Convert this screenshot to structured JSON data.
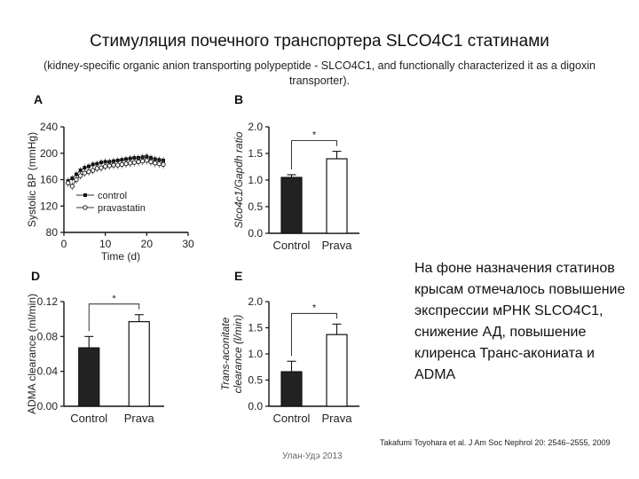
{
  "slide": {
    "title": "Стимуляция почечного транспортера SLCO4C1 статинами",
    "subtitle": "(kidney-specific organic anion transporting polypeptide - SLCO4C1, and functionally characterized it as a digoxin transporter).",
    "note": "На фоне назначения статинов крысам отмечалось повышение экспрессии мРНК SLCO4C1, снижение АД, повышение клиренса Транс-акониата и ADMA",
    "footer_left": "Улан-Удэ 2013",
    "footer_right": "Takafumi Toyohara et al. J Am Soc Nephrol 20: 2546–2555, 2009"
  },
  "chart_data": [
    {
      "panel": "A",
      "type": "line",
      "ylabel": "Systolic BP (mmHg)",
      "xlabel": "Time (d)",
      "xlim": [
        0,
        30
      ],
      "ylim": [
        80,
        240
      ],
      "xticks": [
        "0",
        "10",
        "20",
        "30"
      ],
      "yticks": [
        "80",
        "120",
        "160",
        "200",
        "240"
      ],
      "legend": [
        "control",
        "pravastatin"
      ],
      "legend_position": "bottom-left",
      "series": [
        {
          "name": "control",
          "marker": "filled-square",
          "x": [
            1,
            2,
            3,
            4,
            5,
            6,
            7,
            8,
            9,
            10,
            11,
            12,
            13,
            14,
            15,
            16,
            17,
            18,
            19,
            20,
            21,
            22,
            23,
            24
          ],
          "y": [
            158,
            162,
            168,
            174,
            178,
            180,
            183,
            184,
            186,
            187,
            187,
            188,
            189,
            190,
            191,
            192,
            193,
            193,
            194,
            195,
            193,
            191,
            190,
            189
          ],
          "err": [
            5,
            5,
            5,
            5,
            5,
            5,
            5,
            5,
            5,
            5,
            5,
            5,
            5,
            5,
            5,
            5,
            5,
            5,
            5,
            5,
            5,
            5,
            5,
            5
          ]
        },
        {
          "name": "pravastatin",
          "marker": "open-circle",
          "x": [
            1,
            2,
            3,
            4,
            5,
            6,
            7,
            8,
            9,
            10,
            11,
            12,
            13,
            14,
            15,
            16,
            17,
            18,
            19,
            20,
            21,
            22,
            23,
            24
          ],
          "y": [
            155,
            150,
            160,
            166,
            170,
            172,
            174,
            177,
            178,
            180,
            181,
            182,
            182,
            183,
            184,
            185,
            186,
            187,
            188,
            189,
            187,
            185,
            184,
            183
          ],
          "err": [
            6,
            6,
            6,
            6,
            6,
            6,
            6,
            6,
            6,
            6,
            6,
            6,
            6,
            6,
            6,
            6,
            6,
            6,
            6,
            6,
            6,
            6,
            6,
            6
          ]
        }
      ]
    },
    {
      "panel": "B",
      "type": "bar",
      "ylabel": "Slco4c1/Gapdh ratio",
      "categories": [
        "Control",
        "Prava"
      ],
      "values": [
        1.05,
        1.4
      ],
      "errors": [
        0.05,
        0.14
      ],
      "fills": [
        "#222222",
        "#ffffff"
      ],
      "ylim": [
        0,
        2.0
      ],
      "yticks": [
        "0.0",
        "0.5",
        "1.0",
        "1.5",
        "2.0"
      ],
      "annotation": "*"
    },
    {
      "panel": "D",
      "type": "bar",
      "ylabel": "ADMA clearance (ml/min)",
      "categories": [
        "Control",
        "Prava"
      ],
      "values": [
        0.067,
        0.097
      ],
      "errors": [
        0.013,
        0.008
      ],
      "fills": [
        "#222222",
        "#ffffff"
      ],
      "ylim": [
        0,
        0.12
      ],
      "yticks": [
        "0.00",
        "0.04",
        "0.08",
        "0.12"
      ],
      "annotation": "*"
    },
    {
      "panel": "E",
      "type": "bar",
      "ylabel": "Trans-aconitate clearance (l/min)",
      "categories": [
        "Control",
        "Prava"
      ],
      "values": [
        0.66,
        1.37
      ],
      "errors": [
        0.2,
        0.2
      ],
      "fills": [
        "#222222",
        "#ffffff"
      ],
      "ylim": [
        0,
        2.0
      ],
      "yticks": [
        "0.0",
        "0.5",
        "1.0",
        "1.5",
        "2.0"
      ],
      "annotation": "*"
    }
  ]
}
